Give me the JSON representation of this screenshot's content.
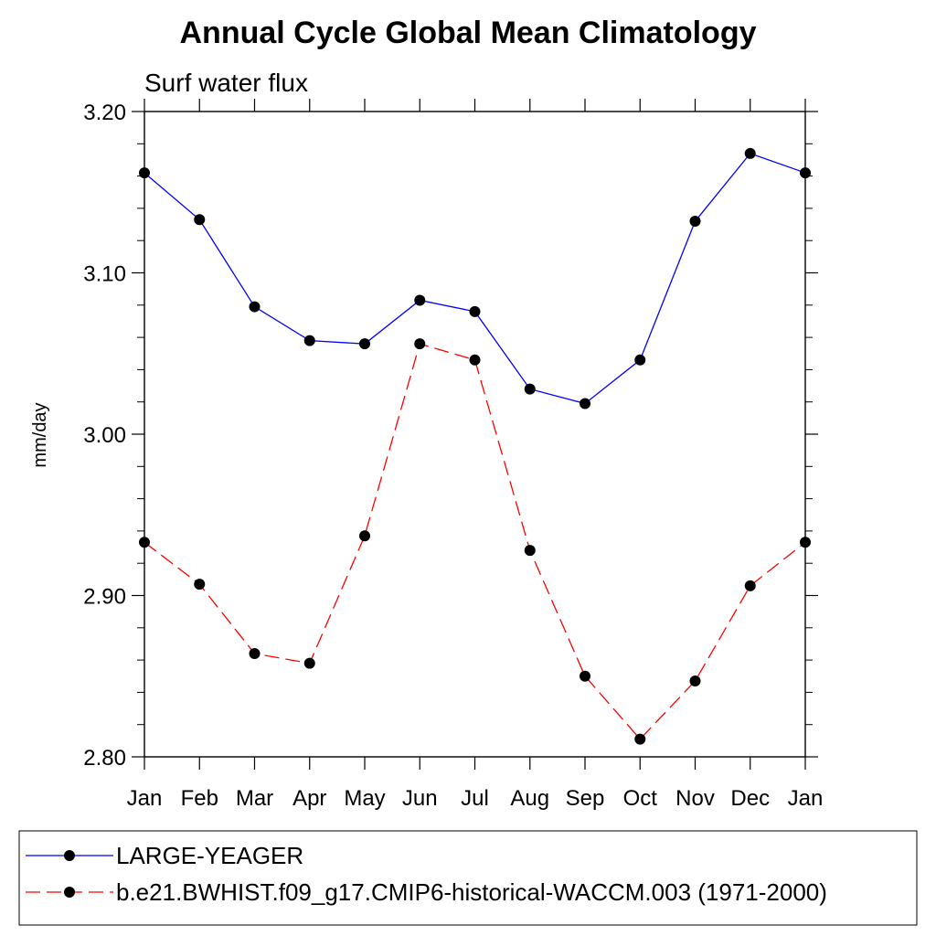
{
  "chart_data": {
    "type": "line",
    "title": "Annual Cycle Global Mean Climatology",
    "subtitle": "Surf water flux",
    "xlabel": "",
    "ylabel": "mm/day",
    "categories": [
      "Jan",
      "Feb",
      "Mar",
      "Apr",
      "May",
      "Jun",
      "Jul",
      "Aug",
      "Sep",
      "Oct",
      "Nov",
      "Dec",
      "Jan"
    ],
    "ylim": [
      2.8,
      3.2
    ],
    "yticks": [
      "2.80",
      "2.90",
      "3.00",
      "3.10",
      "3.20"
    ],
    "grid": false,
    "legend_position": "bottom",
    "series": [
      {
        "name": "LARGE-YEAGER",
        "color": "#0000ff",
        "line_style": "solid",
        "marker": "filled-circle",
        "values": [
          3.162,
          3.133,
          3.079,
          3.058,
          3.056,
          3.083,
          3.076,
          3.028,
          3.019,
          3.046,
          3.132,
          3.174,
          3.162
        ]
      },
      {
        "name": "b.e21.BWHIST.f09_g17.CMIP6-historical-WACCM.003 (1971-2000)",
        "color": "#ff0000",
        "line_style": "dashed",
        "marker": "filled-circle",
        "values": [
          2.933,
          2.907,
          2.864,
          2.858,
          2.937,
          3.056,
          3.046,
          2.928,
          2.85,
          2.811,
          2.847,
          2.906,
          2.933
        ]
      }
    ]
  }
}
